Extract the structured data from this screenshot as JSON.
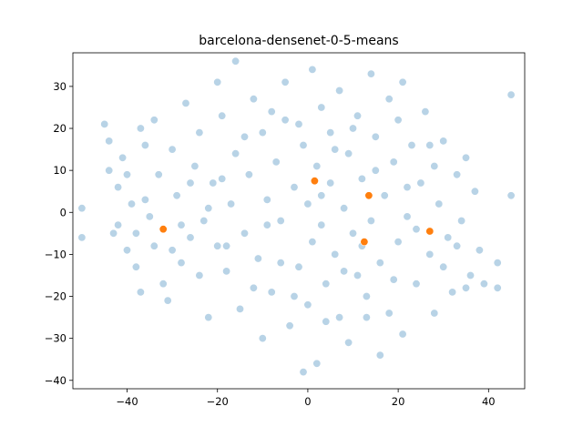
{
  "chart_data": {
    "type": "scatter",
    "title": "barcelona-densenet-0-5-means",
    "xlabel": "",
    "ylabel": "",
    "xlim": [
      -52,
      48
    ],
    "ylim": [
      -42,
      38
    ],
    "xticks": [
      -40,
      -20,
      0,
      20,
      40
    ],
    "yticks": [
      -40,
      -30,
      -20,
      -10,
      0,
      10,
      20,
      30
    ],
    "grid": false,
    "colors": {
      "points": "#a6c8e0",
      "points_edge": "#ffffff",
      "centroids": "#ff7f0e"
    },
    "series": [
      {
        "values": [
          [
            -50,
            1
          ],
          [
            -50,
            -6
          ],
          [
            -45,
            21
          ],
          [
            -44,
            17
          ],
          [
            -44,
            10
          ],
          [
            -43,
            -5
          ],
          [
            -42,
            -3
          ],
          [
            -42,
            6
          ],
          [
            -41,
            13
          ],
          [
            -40,
            9
          ],
          [
            -39,
            2
          ],
          [
            -38,
            -13
          ],
          [
            -37,
            20
          ],
          [
            -37,
            -19
          ],
          [
            -36,
            16
          ],
          [
            -35,
            -1
          ],
          [
            -34,
            22
          ],
          [
            -33,
            9
          ],
          [
            -32,
            -17
          ],
          [
            -31,
            -21
          ],
          [
            -30,
            15
          ],
          [
            -29,
            4
          ],
          [
            -28,
            -12
          ],
          [
            -27,
            26
          ],
          [
            -26,
            -6
          ],
          [
            -25,
            11
          ],
          [
            -24,
            19
          ],
          [
            -23,
            -2
          ],
          [
            -22,
            -25
          ],
          [
            -21,
            7
          ],
          [
            -20,
            -8
          ],
          [
            -20,
            31
          ],
          [
            -19,
            23
          ],
          [
            -18,
            -14
          ],
          [
            -17,
            2
          ],
          [
            -16,
            14
          ],
          [
            -16,
            36
          ],
          [
            -15,
            -23
          ],
          [
            -14,
            -5
          ],
          [
            -13,
            9
          ],
          [
            -12,
            27
          ],
          [
            -11,
            -11
          ],
          [
            -10,
            19
          ],
          [
            -10,
            -30
          ],
          [
            -9,
            3
          ],
          [
            -8,
            -19
          ],
          [
            -7,
            12
          ],
          [
            -6,
            -2
          ],
          [
            -5,
            31
          ],
          [
            -5,
            22
          ],
          [
            -4,
            -27
          ],
          [
            -3,
            6
          ],
          [
            -2,
            -13
          ],
          [
            -1,
            16
          ],
          [
            -1,
            -38
          ],
          [
            0,
            2
          ],
          [
            0,
            -22
          ],
          [
            1,
            34
          ],
          [
            1,
            -7
          ],
          [
            2,
            11
          ],
          [
            2,
            -36
          ],
          [
            3,
            25
          ],
          [
            3,
            -3
          ],
          [
            4,
            -17
          ],
          [
            5,
            7
          ],
          [
            5,
            19
          ],
          [
            6,
            -10
          ],
          [
            7,
            29
          ],
          [
            7,
            -25
          ],
          [
            8,
            1
          ],
          [
            9,
            14
          ],
          [
            9,
            -31
          ],
          [
            10,
            -5
          ],
          [
            11,
            23
          ],
          [
            11,
            -15
          ],
          [
            12,
            8
          ],
          [
            13,
            -20
          ],
          [
            14,
            33
          ],
          [
            14,
            -2
          ],
          [
            15,
            18
          ],
          [
            16,
            -12
          ],
          [
            16,
            -34
          ],
          [
            17,
            4
          ],
          [
            18,
            27
          ],
          [
            18,
            -24
          ],
          [
            19,
            12
          ],
          [
            20,
            -7
          ],
          [
            21,
            31
          ],
          [
            21,
            -29
          ],
          [
            22,
            -1
          ],
          [
            23,
            16
          ],
          [
            24,
            -17
          ],
          [
            25,
            7
          ],
          [
            26,
            24
          ],
          [
            27,
            -10
          ],
          [
            28,
            -24
          ],
          [
            29,
            2
          ],
          [
            30,
            17
          ],
          [
            31,
            -6
          ],
          [
            32,
            -19
          ],
          [
            33,
            9
          ],
          [
            34,
            -2
          ],
          [
            35,
            13
          ],
          [
            36,
            -15
          ],
          [
            37,
            5
          ],
          [
            38,
            -9
          ],
          [
            39,
            -17
          ],
          [
            42,
            -18
          ],
          [
            42,
            -12
          ],
          [
            45,
            28
          ],
          [
            45,
            4
          ],
          [
            -38,
            -5
          ],
          [
            -36,
            3
          ],
          [
            -34,
            -8
          ],
          [
            -28,
            -3
          ],
          [
            -26,
            7
          ],
          [
            -24,
            -15
          ],
          [
            -22,
            1
          ],
          [
            -18,
            -8
          ],
          [
            -14,
            18
          ],
          [
            -12,
            -18
          ],
          [
            -8,
            24
          ],
          [
            -6,
            -12
          ],
          [
            -3,
            -20
          ],
          [
            -2,
            21
          ],
          [
            4,
            -26
          ],
          [
            6,
            15
          ],
          [
            8,
            -14
          ],
          [
            10,
            20
          ],
          [
            12,
            -8
          ],
          [
            15,
            10
          ],
          [
            19,
            -16
          ],
          [
            22,
            6
          ],
          [
            24,
            -4
          ],
          [
            28,
            11
          ],
          [
            30,
            -13
          ],
          [
            33,
            -8
          ],
          [
            -40,
            -9
          ],
          [
            -30,
            -9
          ],
          [
            -19,
            8
          ],
          [
            -9,
            -3
          ],
          [
            3,
            4
          ],
          [
            13,
            -25
          ],
          [
            20,
            22
          ],
          [
            27,
            16
          ],
          [
            35,
            -18
          ]
        ]
      },
      {
        "values": [
          [
            -32,
            -4
          ],
          [
            1.5,
            7.5
          ],
          [
            13.5,
            4
          ],
          [
            12.5,
            -7
          ],
          [
            27,
            -4.5
          ]
        ]
      }
    ]
  }
}
